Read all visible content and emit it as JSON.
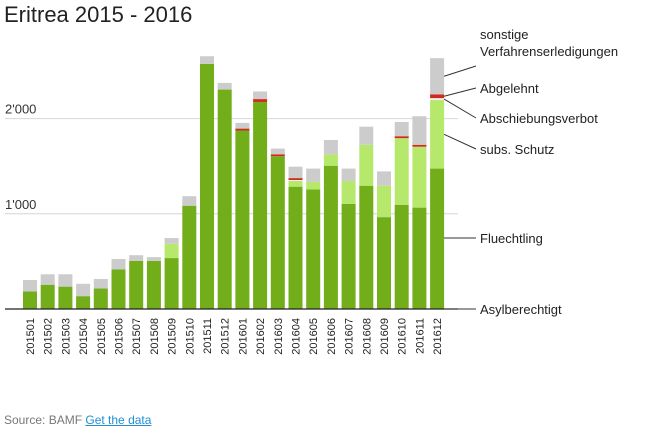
{
  "chart_data": {
    "type": "bar",
    "stacked": true,
    "title": "Eritrea 2015 - 2016",
    "xlabel": "",
    "ylabel": "",
    "ylim": [
      0,
      2700
    ],
    "yticks": [
      1000,
      2000
    ],
    "ytick_labels": [
      "1'000",
      "2'000"
    ],
    "grid": true,
    "legend_position": "right",
    "categories": [
      "201501",
      "201502",
      "201503",
      "201504",
      "201505",
      "201506",
      "201507",
      "201508",
      "201509",
      "201510",
      "201511",
      "201512",
      "201601",
      "201602",
      "201603",
      "201604",
      "201605",
      "201606",
      "201607",
      "201608",
      "201609",
      "201610",
      "201611",
      "201612"
    ],
    "series": [
      {
        "name": "Asylberechtigt",
        "color": "#4c8f1a",
        "values": [
          5,
          5,
          5,
          5,
          5,
          5,
          5,
          5,
          5,
          5,
          5,
          5,
          5,
          5,
          5,
          5,
          5,
          5,
          5,
          5,
          5,
          5,
          5,
          5
        ]
      },
      {
        "name": "Fluechtling",
        "color": "#72ad1a",
        "values": [
          180,
          250,
          230,
          130,
          210,
          410,
          500,
          500,
          530,
          1080,
          2570,
          2300,
          1870,
          2170,
          1600,
          1280,
          1250,
          1500,
          1100,
          1290,
          960,
          1090,
          1060,
          1470
        ]
      },
      {
        "name": "subs. Schutz",
        "color": "#b6e86b",
        "values": [
          0,
          0,
          0,
          0,
          0,
          0,
          0,
          0,
          150,
          0,
          0,
          0,
          0,
          0,
          0,
          60,
          80,
          120,
          240,
          430,
          330,
          700,
          640,
          720
        ]
      },
      {
        "name": "Abschiebungsverbot",
        "color": "#f0f0f0",
        "values": [
          0,
          0,
          0,
          0,
          0,
          0,
          0,
          0,
          0,
          0,
          0,
          0,
          0,
          0,
          0,
          10,
          0,
          0,
          0,
          0,
          0,
          0,
          0,
          20
        ]
      },
      {
        "name": "Abgelehnt",
        "color": "#d0291d",
        "values": [
          0,
          0,
          0,
          0,
          0,
          0,
          0,
          0,
          0,
          0,
          0,
          0,
          20,
          30,
          20,
          20,
          0,
          0,
          0,
          0,
          0,
          20,
          20,
          40
        ]
      },
      {
        "name": "sonstige Verfahrenserledigungen",
        "color": "#cccccc",
        "values": [
          120,
          110,
          130,
          130,
          100,
          110,
          60,
          40,
          60,
          100,
          80,
          70,
          60,
          80,
          60,
          120,
          140,
          150,
          130,
          190,
          150,
          150,
          300,
          380
        ]
      }
    ],
    "legend_labels": [
      {
        "series": "sonstige Verfahrenserledigungen",
        "lines": [
          "sonstige",
          "Verfahrenserledigungen"
        ]
      },
      {
        "series": "Abgelehnt",
        "lines": [
          "Abgelehnt"
        ]
      },
      {
        "series": "Abschiebungsverbot",
        "lines": [
          "Abschiebungsverbot"
        ]
      },
      {
        "series": "subs. Schutz",
        "lines": [
          "subs. Schutz"
        ]
      },
      {
        "series": "Fluechtling",
        "lines": [
          "Fluechtling"
        ]
      },
      {
        "series": "Asylberechtigt",
        "lines": [
          "Asylberechtigt"
        ]
      }
    ]
  },
  "footer": {
    "source_text": "Source: BAMF",
    "link_text": "Get the data"
  }
}
